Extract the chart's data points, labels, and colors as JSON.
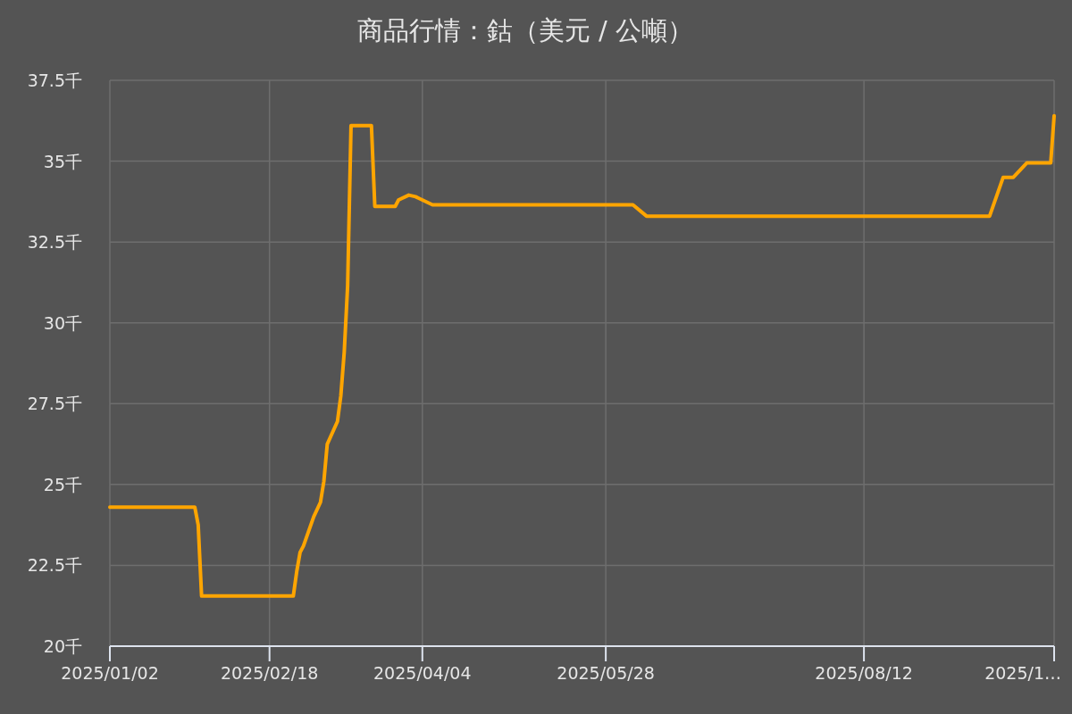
{
  "chart_data": {
    "type": "line",
    "title": "商品行情：鈷（美元 / 公噸）",
    "x": [
      "2025-01-02",
      "2025-01-27",
      "2025-01-28",
      "2025-01-29",
      "2025-02-25",
      "2025-02-26",
      "2025-02-27",
      "2025-02-28",
      "2025-03-03",
      "2025-03-05",
      "2025-03-06",
      "2025-03-07",
      "2025-03-10",
      "2025-03-11",
      "2025-03-12",
      "2025-03-13",
      "2025-03-14",
      "2025-03-20",
      "2025-03-21",
      "2025-03-27",
      "2025-03-28",
      "2025-03-31",
      "2025-04-02",
      "2025-04-03",
      "2025-04-07",
      "2025-06-05",
      "2025-06-09",
      "2025-09-18",
      "2025-09-22",
      "2025-09-25",
      "2025-09-29",
      "2025-10-06",
      "2025-10-07"
    ],
    "series": [
      {
        "color": "#ffa500",
        "values": [
          24.3,
          24.3,
          23.75,
          21.55,
          21.55,
          22.3,
          22.9,
          23.1,
          24.0,
          24.45,
          25.1,
          26.25,
          26.95,
          27.75,
          29.1,
          31.15,
          36.1,
          36.1,
          33.6,
          33.6,
          33.8,
          33.95,
          33.9,
          33.85,
          33.65,
          33.65,
          33.3,
          33.3,
          34.5,
          34.5,
          34.95,
          34.95,
          36.4
        ]
      }
    ],
    "xlim": [
      "2025-01-02",
      "2025-10-07"
    ],
    "xticks": [
      {
        "value": "2025-01-02",
        "label": "2025/01/02"
      },
      {
        "value": "2025-02-18",
        "label": "2025/02/18"
      },
      {
        "value": "2025-04-04",
        "label": "2025/04/04"
      },
      {
        "value": "2025-05-28",
        "label": "2025/05/28"
      },
      {
        "value": "2025-08-12",
        "label": "2025/08/12"
      },
      {
        "value": "2025-10-07",
        "label": "2025/1…"
      }
    ],
    "ylim": [
      20,
      37.5
    ],
    "yticks": [
      {
        "value": 20,
        "label": "20千"
      },
      {
        "value": 22.5,
        "label": "22.5千"
      },
      {
        "value": 25,
        "label": "25千"
      },
      {
        "value": 27.5,
        "label": "27.5千"
      },
      {
        "value": 30,
        "label": "30千"
      },
      {
        "value": 32.5,
        "label": "32.5千"
      },
      {
        "value": 35,
        "label": "35千"
      },
      {
        "value": 37.5,
        "label": "37.5千"
      }
    ],
    "grid": true,
    "marker": "none",
    "line_style": "solid"
  }
}
